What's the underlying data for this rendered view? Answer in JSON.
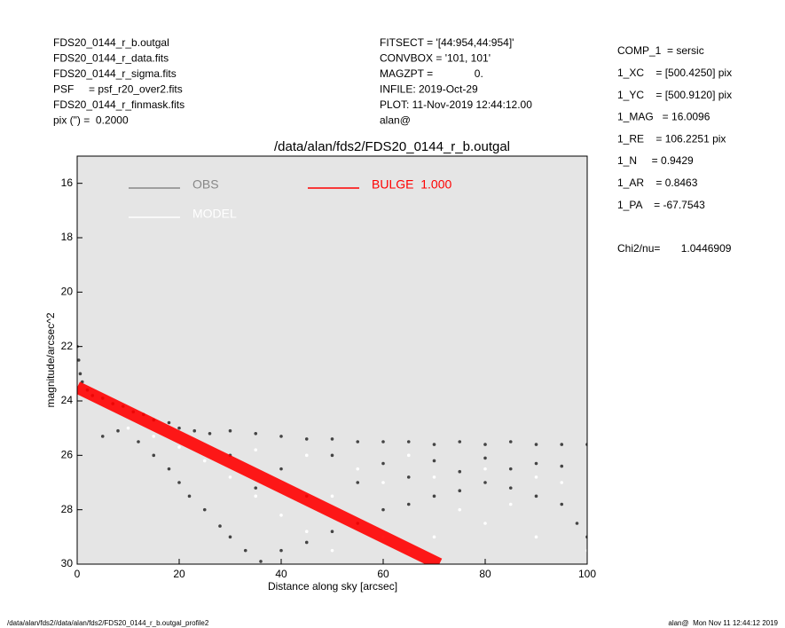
{
  "chart_data": {
    "type": "scatter",
    "header_left": [
      "FDS20_0144_r_b.outgal",
      "FDS20_0144_r_data.fits",
      "FDS20_0144_r_sigma.fits",
      "PSF     = psf_r20_over2.fits",
      "FDS20_0144_r_finmask.fits",
      "pix (\") =  0.2000"
    ],
    "header_mid": [
      "FITSECT = '[44:954,44:954]'",
      "CONVBOX = '101, 101'",
      "MAGZPT =              0.",
      "INFILE: 2019-Oct-29",
      "PLOT: 11-Nov-2019 12:44:12.00",
      "alan@"
    ],
    "params": [
      "COMP_1  = sersic",
      "1_XC    = [500.4250] pix",
      "1_YC    = [500.9120] pix",
      "1_MAG   = 16.0096",
      "1_RE    = 106.2251 pix",
      "1_N     = 0.9429",
      "1_AR    = 0.8463",
      "1_PA    = -67.7543"
    ],
    "chi2": "Chi2/nu=       1.0446909",
    "title": "/data/alan/fds2/FDS20_0144_r_b.outgal",
    "x_label": "Distance along sky [arcsec]",
    "y_label": "magnitude/arcsec^2",
    "footer_left": "/data/alan/fds2//data/alan/fds2/FDS20_0144_r_b.outgal_profile2",
    "footer_right": "alan@  Mon Nov 11 12:44:12 2019",
    "xlim": [
      0,
      100
    ],
    "xticks": [
      0,
      20,
      40,
      60,
      80,
      100
    ],
    "ylim": [
      30,
      15
    ],
    "yticks": [
      16,
      18,
      20,
      22,
      24,
      26,
      28,
      30
    ],
    "series": [
      {
        "name": "OBS",
        "color": "#444444",
        "legend_color": "#888888",
        "x": [
          0,
          0.3,
          0.6,
          1,
          2,
          3,
          5,
          7,
          9,
          11,
          13,
          15,
          18,
          20,
          23,
          26,
          30,
          35,
          40,
          45,
          50,
          55,
          60,
          65,
          70,
          75,
          80,
          85,
          90,
          95,
          100,
          5,
          8,
          12,
          15,
          18,
          20,
          22,
          25,
          28,
          30,
          33,
          36,
          40,
          45,
          50,
          55,
          60,
          65,
          70,
          75,
          80,
          85,
          90,
          95,
          98,
          100,
          30,
          40,
          50,
          60,
          70,
          80,
          90,
          55,
          65,
          75,
          85,
          95,
          45,
          35
        ],
        "values": [
          22,
          22.5,
          23,
          23.3,
          23.6,
          23.8,
          23.9,
          24.1,
          24.2,
          24.4,
          24.5,
          24.7,
          24.8,
          25,
          25.1,
          25.2,
          25.1,
          25.2,
          25.3,
          25.4,
          25.4,
          25.5,
          25.5,
          25.5,
          25.6,
          25.5,
          25.6,
          25.5,
          25.6,
          25.6,
          25.6,
          25.3,
          25.1,
          25.5,
          26,
          26.5,
          27,
          27.5,
          28,
          28.6,
          29,
          29.5,
          29.9,
          29.5,
          29.2,
          28.8,
          28.5,
          28,
          27.8,
          27.5,
          27.3,
          27,
          27.2,
          27.5,
          27.8,
          28.5,
          29,
          26,
          26.5,
          26,
          26.3,
          26.2,
          26.1,
          26.3,
          27,
          26.8,
          26.6,
          26.5,
          26.4,
          27.5,
          27.2
        ]
      },
      {
        "name": "MODEL",
        "color": "#ffffff",
        "legend_color": "#ffffff",
        "x": [
          10,
          15,
          20,
          25,
          30,
          35,
          40,
          45,
          50,
          40,
          50,
          60,
          70,
          80,
          90,
          95,
          60,
          65,
          70,
          80,
          90,
          100,
          75,
          85,
          55,
          65,
          45,
          35
        ],
        "values": [
          25,
          25.3,
          25.7,
          26.2,
          26.8,
          27.5,
          28.2,
          28.8,
          29.5,
          27,
          27.5,
          27,
          26.8,
          26.5,
          26.8,
          27,
          29,
          29.5,
          29,
          28.5,
          29,
          29.5,
          28,
          27.8,
          26.5,
          26,
          26,
          25.8
        ]
      },
      {
        "name": "BULGE  1.000",
        "color": "#ff0000",
        "legend_color": "#ff0000",
        "line": true,
        "x": [
          0,
          71
        ],
        "values": [
          23.5,
          30
        ]
      }
    ]
  }
}
